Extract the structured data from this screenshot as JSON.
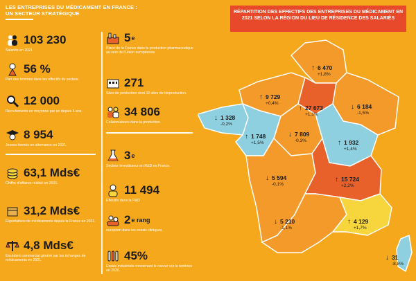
{
  "header": {
    "line1": "LES ENTREPRISES DU MÉDICAMENT EN FRANCE :",
    "line2": "UN SECTEUR STRATÉGIQUE"
  },
  "col1": [
    {
      "icon": "people-icon",
      "value": "103 230",
      "desc": "Salariés en 2021"
    },
    {
      "icon": "woman-icon",
      "value": "56 %",
      "desc": "Part des femmes dans les effectifs du secteur."
    },
    {
      "icon": "magnifier-icon",
      "value": "12 000",
      "desc": "Recrutements en moyenne par an depuis 5 ans."
    },
    {
      "icon": "graduate-icon",
      "value": "8 954",
      "desc": "Jeunes formés en alternance en 2021."
    },
    {
      "icon": "coins-icon",
      "value": "63,1 Mds€",
      "desc": "Chiffre d'affaires réalisé en 2021."
    },
    {
      "icon": "box-icon",
      "value": "31,2 Mds€",
      "desc": "Exportations de médicaments depuis la France en 2021."
    },
    {
      "icon": "balance-icon",
      "value": "4,8 Mds€",
      "desc": "Excédent commercial généré par les échanges de médicaments en 2021."
    }
  ],
  "col2": [
    {
      "icon": "factory-icon",
      "value": "5",
      "sup": "e",
      "desc": "Place de la France dans la production pharmaceutique au sein de l'Union européenne"
    },
    {
      "icon": "building-icon",
      "value": "271",
      "desc": "Sites de production dont 32 sites de bioproduction."
    },
    {
      "icon": "workers-icon",
      "value": "34 806",
      "desc": "Collaborateurs dans la production."
    },
    {
      "icon": "flask-icon",
      "value": "3",
      "sup": "e",
      "desc": "Secteur investisseur en R&D en France."
    },
    {
      "icon": "researcher-icon",
      "value": "11 494",
      "desc": "Effectifs dans la R&D"
    },
    {
      "icon": "trial-icon",
      "value": "2",
      "sup": "e rang",
      "desc": "européen dans les essais cliniques."
    },
    {
      "icon": "tubes-icon",
      "value": "45%",
      "desc": "Essais industriels concernant le cancer sur le territoire en 2020."
    }
  ],
  "map": {
    "title": "RÉPARTITION DES EFFECTIFS DES ENTREPRISES DU MÉDICAMENT EN 2021 SELON LA RÉGION DU LIEU DE RÉSIDENCE DES SALARIÉS",
    "colors": {
      "orange_dark": "#e8612a",
      "orange": "#f39a2a",
      "blue": "#8fd0e0",
      "yellow": "#f6d63c"
    },
    "regions": [
      {
        "name": "hauts-de-france",
        "value": "6 470",
        "change": "+1,8%",
        "trend": "up"
      },
      {
        "name": "normandie",
        "value": "9 729",
        "change": "+0,4%",
        "trend": "up"
      },
      {
        "name": "ile-de-france",
        "value": "27 673",
        "change": "+1,1%",
        "trend": "up"
      },
      {
        "name": "grand-est",
        "value": "6 184",
        "change": "-1,5%",
        "trend": "down"
      },
      {
        "name": "bretagne",
        "value": "1 328",
        "change": "-0,2%",
        "trend": "down"
      },
      {
        "name": "pays-de-la-loire",
        "value": "1 748",
        "change": "+1,5%",
        "trend": "up"
      },
      {
        "name": "centre-val-de-loire",
        "value": "7 809",
        "change": "-0,3%",
        "trend": "down"
      },
      {
        "name": "bourgogne-franche-comte",
        "value": "1 932",
        "change": "+1,4%",
        "trend": "up"
      },
      {
        "name": "nouvelle-aquitaine",
        "value": "5 594",
        "change": "-0,1%",
        "trend": "down"
      },
      {
        "name": "auvergne-rhone-alpes",
        "value": "15 724",
        "change": "+2,2%",
        "trend": "up"
      },
      {
        "name": "occitanie",
        "value": "5 210",
        "change": "-1,1%",
        "trend": "down"
      },
      {
        "name": "paca",
        "value": "4 129",
        "change": "+1,7%",
        "trend": "up"
      },
      {
        "name": "corse",
        "value": "31",
        "change": "-8,8%",
        "trend": "down"
      }
    ]
  }
}
